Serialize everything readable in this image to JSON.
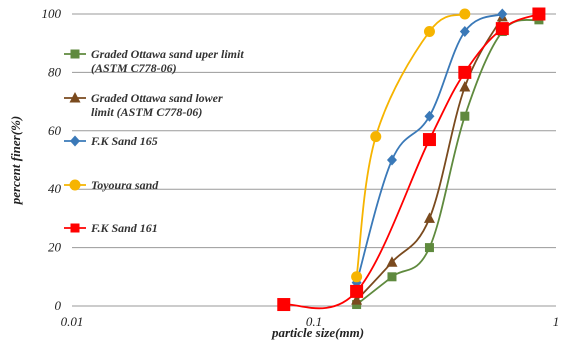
{
  "chart_data": {
    "type": "line",
    "x_scale": "log",
    "xlim": [
      0.01,
      1
    ],
    "ylim": [
      0,
      100
    ],
    "xlabel": "particle size(mm)",
    "ylabel": "percent finer(%)",
    "x_ticks": [
      "0.01",
      "0.1",
      "1"
    ],
    "y_ticks": [
      "0",
      "20",
      "40",
      "60",
      "80",
      "100"
    ],
    "grid": "horizontal",
    "legend_position": "left-inside",
    "series": [
      {
        "name_lines": [
          "Graded Ottawa sand uper limit",
          "(ASTM C778-06)"
        ],
        "color": "#5f8a3e",
        "marker": "square",
        "x": [
          0.15,
          0.21,
          0.3,
          0.42,
          0.6,
          0.85
        ],
        "y": [
          0.5,
          10,
          20,
          65,
          94,
          98
        ]
      },
      {
        "name_lines": [
          "Graded Ottawa sand lower",
          "limit (ASTM C778-06)"
        ],
        "color": "#7a4a1e",
        "marker": "triangle",
        "x": [
          0.15,
          0.21,
          0.3,
          0.42,
          0.6
        ],
        "y": [
          2,
          15,
          30,
          75,
          99
        ]
      },
      {
        "name_lines": [
          "F.K Sand 165"
        ],
        "color": "#3a79b8",
        "marker": "diamond",
        "x": [
          0.15,
          0.21,
          0.3,
          0.42,
          0.6
        ],
        "y": [
          8,
          50,
          65,
          94,
          100
        ]
      },
      {
        "name_lines": [
          "Toyoura sand"
        ],
        "color": "#f6b400",
        "marker": "circle",
        "x": [
          0.15,
          0.18,
          0.3,
          0.42
        ],
        "y": [
          10,
          58,
          94,
          100
        ]
      },
      {
        "name_lines": [
          "F.K Sand 161"
        ],
        "color": "#ff0000",
        "marker": "square-large",
        "x": [
          0.075,
          0.15,
          0.3,
          0.42,
          0.6,
          0.85
        ],
        "y": [
          0.5,
          5,
          57,
          80,
          95,
          100
        ]
      }
    ]
  }
}
